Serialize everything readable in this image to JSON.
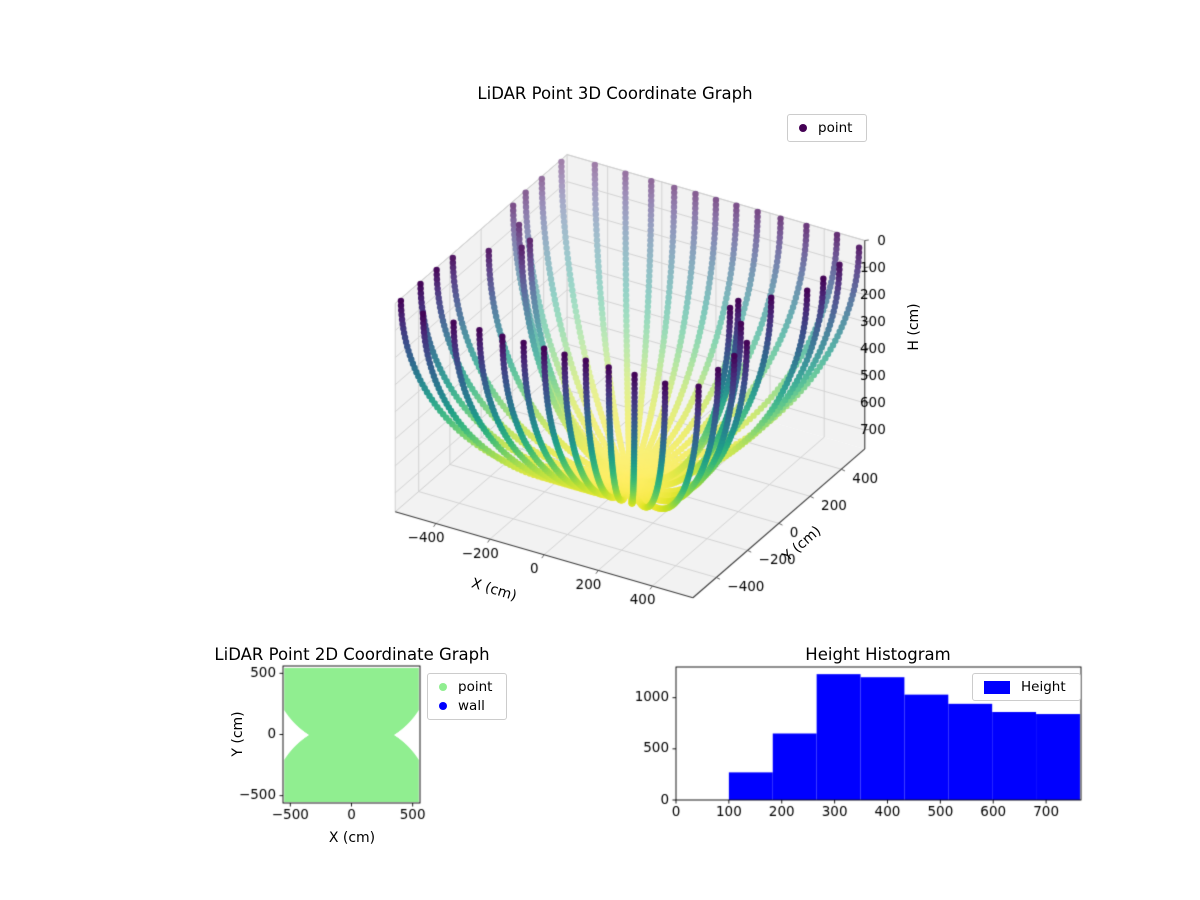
{
  "chart_data": [
    {
      "type": "scatter3d",
      "title": "LiDAR Point 3D Coordinate Graph",
      "xlabel": "X (cm)",
      "ylabel": "Y (cm)",
      "zlabel": "H (cm)",
      "legend": [
        {
          "label": "point",
          "color": "#440154"
        }
      ],
      "xlim": [
        -550,
        550
      ],
      "ylim": [
        -550,
        550
      ],
      "hlim": [
        0,
        770
      ],
      "xticks": [
        -400,
        -200,
        0,
        200,
        400
      ],
      "yticks": [
        -400,
        -200,
        0,
        200,
        400
      ],
      "hticks": [
        0,
        100,
        200,
        300,
        400,
        500,
        600,
        700
      ],
      "h_axis_inverted": true,
      "view": {
        "elev": 30,
        "azim": -60
      },
      "colormap": "viridis",
      "point_cloud": {
        "shape": "bowl-shaped LiDAR wall scan: horizontal cross-section is an hourglass region (union of two discs of radius 650 cm centered at y = +550 and y = -550, clipped to |x|,|y| <= 550) that shrinks with depth; radius = R(theta)*cos(phi), H = 770*sin(phi); points colored by H with viridis, far points depth-faded",
        "ribs": 46,
        "points_per_rib": 70,
        "disc_center_y": 550,
        "disc_radius": 650,
        "clip": 550,
        "h_max": 770,
        "color_by": "H"
      }
    },
    {
      "type": "region2d",
      "title": "LiDAR Point 2D Coordinate Graph",
      "xlabel": "X (cm)",
      "ylabel": "Y (cm)",
      "legend": [
        {
          "label": "point",
          "color": "#90ee90"
        },
        {
          "label": "wall",
          "color": "#0000ff"
        }
      ],
      "xlim": [
        -560,
        560
      ],
      "ylim": [
        -560,
        560
      ],
      "xticks": [
        -500,
        0,
        500
      ],
      "yticks": [
        -500,
        0,
        500
      ],
      "region": {
        "description": "solid light-green hourglass region: union of two discs radius 650 centered (0,+550) and (0,-550), clipped to |x|,|y| <= 550",
        "disc_center_y": 550,
        "disc_radius": 650,
        "clip": 550,
        "fill": "#90ee90"
      }
    },
    {
      "type": "histogram",
      "title": "Height Histogram",
      "legend": [
        {
          "label": "Height",
          "color": "#0000ff"
        }
      ],
      "bin_edges": [
        100,
        183,
        266,
        349,
        432,
        515,
        598,
        681,
        764
      ],
      "counts": [
        270,
        650,
        1230,
        1200,
        1030,
        940,
        860,
        840
      ],
      "xlim": [
        0,
        766
      ],
      "ylim": [
        0,
        1300
      ],
      "xticks": [
        0,
        100,
        200,
        300,
        400,
        500,
        600,
        700
      ],
      "yticks": [
        0,
        500,
        1000
      ],
      "bar_color": "#0000ff"
    }
  ],
  "colors": {
    "viridis_stops": [
      [
        0.0,
        "#440154"
      ],
      [
        0.1,
        "#482878"
      ],
      [
        0.2,
        "#3e4a89"
      ],
      [
        0.3,
        "#31688e"
      ],
      [
        0.4,
        "#26828e"
      ],
      [
        0.5,
        "#1f9e89"
      ],
      [
        0.6,
        "#35b779"
      ],
      [
        0.7,
        "#6dcd59"
      ],
      [
        0.8,
        "#b4de2c"
      ],
      [
        0.9,
        "#dfe318"
      ],
      [
        1.0,
        "#fde725"
      ]
    ]
  }
}
